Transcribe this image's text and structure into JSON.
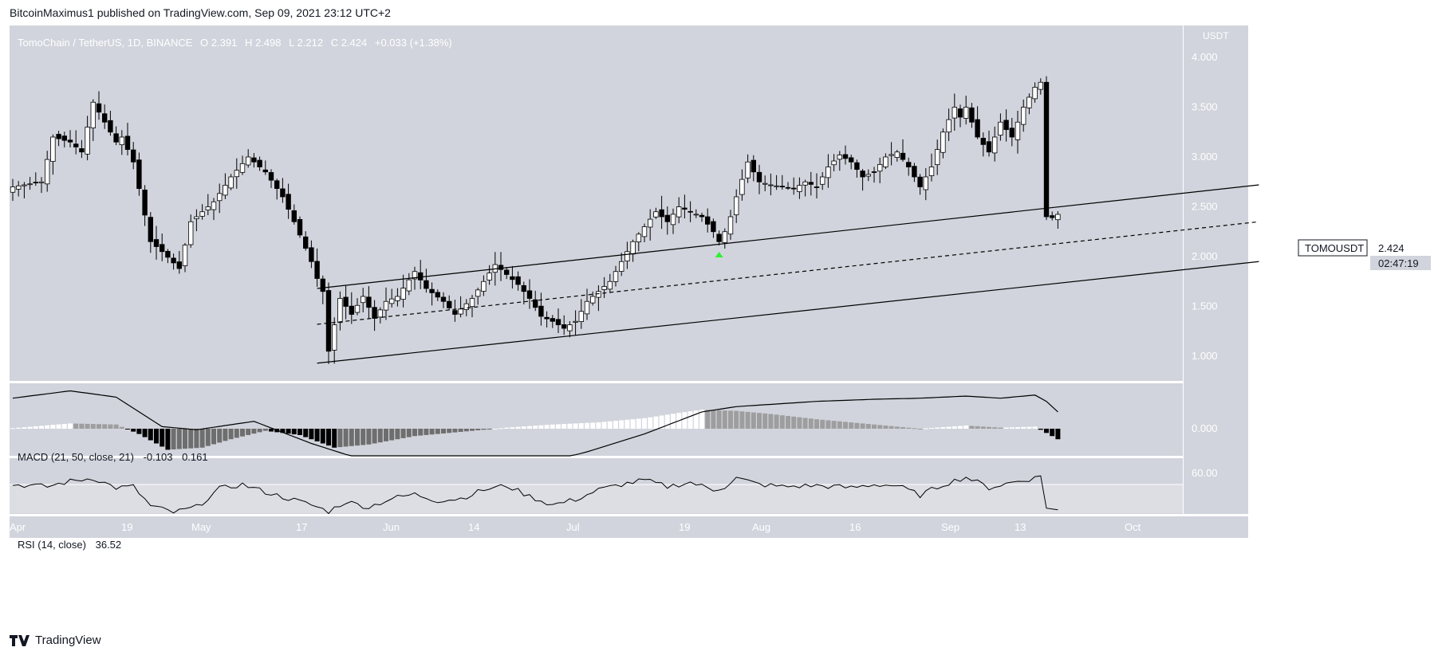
{
  "header": {
    "published": "BitcoinMaximus1 published on TradingView.com, Sep 09, 2021 23:12 UTC+2"
  },
  "footer": {
    "brand": "TradingView"
  },
  "colors": {
    "panel_bg": "#d1d4dc",
    "rsi_band": "#dcdee4",
    "up_fill": "#ffffff",
    "down_fill": "#000000",
    "text_light": "#ffffff",
    "arrow": "#2ef12e"
  },
  "main_legend": {
    "symbol": "TomoChain / TetherUS, 1D, BINANCE",
    "o_label": "O",
    "o": "2.391",
    "h_label": "H",
    "h": "2.498",
    "l_label": "L",
    "l": "2.212",
    "c_label": "C",
    "c": "2.424",
    "change": "+0.033 (+1.38%)"
  },
  "price_axis": {
    "unit": "USDT",
    "ticks": [
      "4.000",
      "3.500",
      "3.000",
      "2.500",
      "2.000",
      "1.500",
      "1.000"
    ]
  },
  "price_tag": {
    "symbol": "TOMOUSDT",
    "price": "2.424",
    "countdown": "02:47:19"
  },
  "macd": {
    "label": "MACD (21, 50, close, 21)",
    "value1": "-0.103",
    "value2": "0.161",
    "ticks": [
      "0.000"
    ]
  },
  "rsi": {
    "label": "RSI (14, close)",
    "value": "36.52",
    "ticks": [
      "60.00"
    ]
  },
  "time_axis": [
    "Apr",
    "19",
    "May",
    "17",
    "Jun",
    "14",
    "Jul",
    "19",
    "Aug",
    "16",
    "Sep",
    "13",
    "Oct"
  ],
  "chart_data": [
    {
      "type": "candlestick",
      "title": "TomoChain / TetherUS, 1D, BINANCE",
      "x_labels": [
        "Apr",
        "19",
        "May",
        "17",
        "Jun",
        "14",
        "Jul",
        "19",
        "Aug",
        "16",
        "Sep",
        "13",
        "Oct"
      ],
      "ylim": [
        0.75,
        4.15
      ],
      "close_keypoints": [
        [
          0,
          2.7
        ],
        [
          5,
          2.75
        ],
        [
          7,
          3.2
        ],
        [
          10,
          3.15
        ],
        [
          12,
          3.05
        ],
        [
          14,
          3.55
        ],
        [
          18,
          3.15
        ],
        [
          19,
          3.2
        ],
        [
          21,
          2.95
        ],
        [
          24,
          2.15
        ],
        [
          26,
          2.05
        ],
        [
          29,
          1.88
        ],
        [
          31,
          2.35
        ],
        [
          35,
          2.55
        ],
        [
          38,
          2.8
        ],
        [
          41,
          3.0
        ],
        [
          44,
          2.85
        ],
        [
          47,
          2.6
        ],
        [
          49,
          2.35
        ],
        [
          52,
          1.95
        ],
        [
          53,
          1.78
        ],
        [
          54,
          1.65
        ],
        [
          55,
          1.05
        ],
        [
          57,
          1.58
        ],
        [
          59,
          1.42
        ],
        [
          61,
          1.6
        ],
        [
          63,
          1.38
        ],
        [
          65,
          1.55
        ],
        [
          67,
          1.6
        ],
        [
          70,
          1.85
        ],
        [
          72,
          1.68
        ],
        [
          75,
          1.55
        ],
        [
          77,
          1.42
        ],
        [
          80,
          1.58
        ],
        [
          82,
          1.75
        ],
        [
          84,
          1.92
        ],
        [
          86,
          1.82
        ],
        [
          88,
          1.72
        ],
        [
          90,
          1.58
        ],
        [
          92,
          1.4
        ],
        [
          94,
          1.35
        ],
        [
          96,
          1.28
        ],
        [
          98,
          1.35
        ],
        [
          100,
          1.55
        ],
        [
          102,
          1.65
        ],
        [
          104,
          1.75
        ],
        [
          106,
          1.95
        ],
        [
          108,
          2.15
        ],
        [
          110,
          2.3
        ],
        [
          112,
          2.45
        ],
        [
          114,
          2.35
        ],
        [
          116,
          2.5
        ],
        [
          118,
          2.45
        ],
        [
          120,
          2.4
        ],
        [
          122,
          2.25
        ],
        [
          123,
          2.15
        ],
        [
          124,
          2.25
        ],
        [
          125,
          2.4
        ],
        [
          126,
          2.6
        ],
        [
          128,
          2.95
        ],
        [
          130,
          2.75
        ],
        [
          132,
          2.72
        ],
        [
          134,
          2.7
        ],
        [
          136,
          2.68
        ],
        [
          138,
          2.75
        ],
        [
          140,
          2.7
        ],
        [
          142,
          2.9
        ],
        [
          144,
          3.02
        ],
        [
          146,
          2.95
        ],
        [
          148,
          2.8
        ],
        [
          150,
          2.85
        ],
        [
          152,
          3.0
        ],
        [
          154,
          3.05
        ],
        [
          156,
          2.9
        ],
        [
          158,
          2.7
        ],
        [
          160,
          2.9
        ],
        [
          162,
          3.25
        ],
        [
          164,
          3.5
        ],
        [
          165,
          3.4
        ],
        [
          166,
          3.5
        ],
        [
          168,
          3.2
        ],
        [
          170,
          3.05
        ],
        [
          172,
          3.35
        ],
        [
          174,
          3.2
        ],
        [
          176,
          3.5
        ],
        [
          178,
          3.7
        ],
        [
          179,
          3.75
        ],
        [
          180,
          2.4
        ],
        [
          181,
          2.391
        ],
        [
          182,
          2.424
        ]
      ],
      "annotations": {
        "channel_upper": [
          [
            53,
            1.68
          ],
          [
            217,
            2.72
          ]
        ],
        "channel_mid": [
          [
            53,
            1.32
          ],
          [
            217,
            2.35
          ]
        ],
        "channel_lower": [
          [
            53,
            0.93
          ],
          [
            217,
            1.95
          ]
        ],
        "green_arrow_at": 123
      }
    },
    {
      "type": "bar+line",
      "title": "MACD (21, 50, close, 21)",
      "histogram_keypoints": [
        [
          0,
          0.005
        ],
        [
          10,
          0.05
        ],
        [
          18,
          0.04
        ],
        [
          22,
          -0.05
        ],
        [
          27,
          -0.2
        ],
        [
          33,
          -0.18
        ],
        [
          38,
          -0.1
        ],
        [
          44,
          -0.02
        ],
        [
          50,
          -0.06
        ],
        [
          56,
          -0.18
        ],
        [
          62,
          -0.15
        ],
        [
          70,
          -0.07
        ],
        [
          78,
          -0.03
        ],
        [
          86,
          0.01
        ],
        [
          94,
          0.04
        ],
        [
          102,
          0.06
        ],
        [
          110,
          0.1
        ],
        [
          116,
          0.15
        ],
        [
          120,
          0.18
        ],
        [
          126,
          0.17
        ],
        [
          132,
          0.14
        ],
        [
          140,
          0.09
        ],
        [
          150,
          0.04
        ],
        [
          158,
          0.0
        ],
        [
          166,
          0.03
        ],
        [
          172,
          0.01
        ],
        [
          178,
          0.02
        ],
        [
          180,
          -0.04
        ],
        [
          182,
          -0.1
        ]
      ],
      "line_keypoints": [
        [
          0,
          0.29
        ],
        [
          10,
          0.36
        ],
        [
          18,
          0.3
        ],
        [
          26,
          0.02
        ],
        [
          32,
          -0.01
        ],
        [
          42,
          0.07
        ],
        [
          52,
          -0.14
        ],
        [
          60,
          -0.28
        ],
        [
          70,
          -0.35
        ],
        [
          80,
          -0.39
        ],
        [
          90,
          -0.36
        ],
        [
          100,
          -0.22
        ],
        [
          110,
          -0.05
        ],
        [
          120,
          0.16
        ],
        [
          126,
          0.21
        ],
        [
          140,
          0.26
        ],
        [
          150,
          0.28
        ],
        [
          158,
          0.29
        ],
        [
          166,
          0.31
        ],
        [
          172,
          0.29
        ],
        [
          178,
          0.32
        ],
        [
          180,
          0.26
        ],
        [
          182,
          0.16
        ]
      ]
    },
    {
      "type": "line",
      "title": "RSI (14, close)",
      "ylim": [
        0,
        100
      ],
      "keypoints": [
        [
          0,
          60
        ],
        [
          6,
          58
        ],
        [
          10,
          63
        ],
        [
          14,
          66
        ],
        [
          18,
          57
        ],
        [
          21,
          58
        ],
        [
          24,
          40
        ],
        [
          28,
          34
        ],
        [
          32,
          39
        ],
        [
          36,
          56
        ],
        [
          40,
          60
        ],
        [
          44,
          53
        ],
        [
          48,
          47
        ],
        [
          52,
          41
        ],
        [
          55,
          35
        ],
        [
          58,
          44
        ],
        [
          62,
          39
        ],
        [
          66,
          47
        ],
        [
          70,
          51
        ],
        [
          74,
          45
        ],
        [
          78,
          47
        ],
        [
          82,
          55
        ],
        [
          86,
          59
        ],
        [
          90,
          49
        ],
        [
          94,
          41
        ],
        [
          98,
          46
        ],
        [
          102,
          55
        ],
        [
          106,
          60
        ],
        [
          110,
          64
        ],
        [
          114,
          58
        ],
        [
          118,
          62
        ],
        [
          122,
          55
        ],
        [
          124,
          58
        ],
        [
          126,
          66
        ],
        [
          130,
          60
        ],
        [
          134,
          58
        ],
        [
          140,
          59
        ],
        [
          146,
          57
        ],
        [
          150,
          60
        ],
        [
          154,
          59
        ],
        [
          158,
          50
        ],
        [
          162,
          60
        ],
        [
          166,
          67
        ],
        [
          170,
          57
        ],
        [
          174,
          62
        ],
        [
          178,
          66
        ],
        [
          179,
          68
        ],
        [
          180,
          38
        ],
        [
          182,
          36.52
        ]
      ]
    }
  ]
}
